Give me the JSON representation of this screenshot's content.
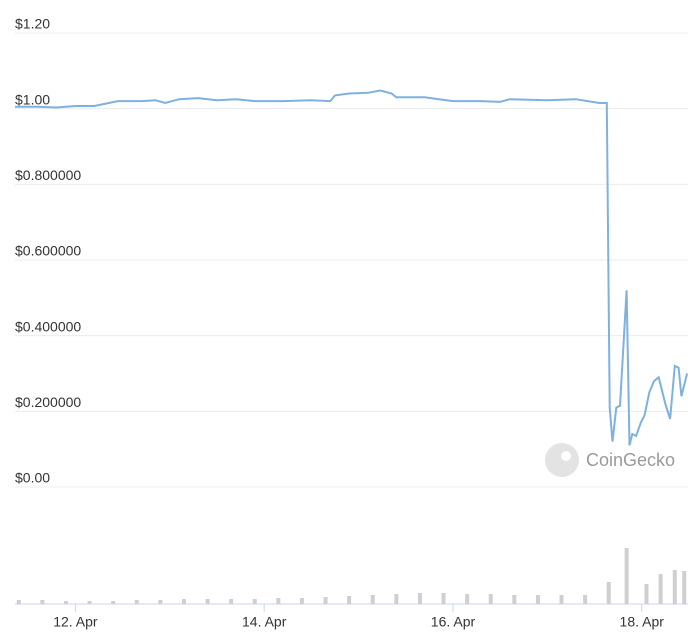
{
  "chart_data": [
    {
      "type": "line",
      "watermark": "CoinGecko",
      "series": [
        {
          "color": "#7fb1df",
          "x": [
            11.36,
            11.6,
            11.8,
            12.0,
            12.2,
            12.45,
            12.7,
            12.85,
            12.95,
            13.1,
            13.3,
            13.5,
            13.7,
            13.9,
            14.2,
            14.5,
            14.7,
            14.75,
            14.9,
            15.1,
            15.23,
            15.35,
            15.4,
            15.7,
            15.85,
            16.0,
            16.3,
            16.5,
            16.6,
            17.0,
            17.3,
            17.55,
            17.63,
            17.66,
            17.69,
            17.73,
            17.77,
            17.84,
            17.87,
            17.9,
            17.94,
            17.99,
            18.03,
            18.08,
            18.13,
            18.18,
            18.25,
            18.3,
            18.35,
            18.39,
            18.42,
            18.48
          ],
          "values": [
            1.005,
            1.005,
            1.003,
            1.007,
            1.007,
            1.02,
            1.02,
            1.022,
            1.015,
            1.025,
            1.028,
            1.022,
            1.025,
            1.02,
            1.02,
            1.022,
            1.02,
            1.035,
            1.04,
            1.042,
            1.048,
            1.04,
            1.03,
            1.03,
            1.025,
            1.02,
            1.02,
            1.018,
            1.025,
            1.022,
            1.025,
            1.015,
            1.015,
            0.21,
            0.12,
            0.21,
            0.215,
            0.52,
            0.11,
            0.14,
            0.135,
            0.17,
            0.19,
            0.25,
            0.28,
            0.29,
            0.22,
            0.18,
            0.32,
            0.315,
            0.24,
            0.3
          ]
        }
      ],
      "xlim": [
        11.36,
        18.49
      ],
      "xticks": [
        {
          "value": 12,
          "label": "12. Apr"
        },
        {
          "value": 14,
          "label": "14. Apr"
        },
        {
          "value": 16,
          "label": "16. Apr"
        },
        {
          "value": 18,
          "label": "18. Apr"
        }
      ],
      "ylim": [
        0,
        1.2
      ],
      "yticks": [
        {
          "value": 0,
          "label": "$0.00"
        },
        {
          "value": 0.2,
          "label": "$0.200000"
        },
        {
          "value": 0.4,
          "label": "$0.400000"
        },
        {
          "value": 0.6,
          "label": "$0.600000"
        },
        {
          "value": 0.8,
          "label": "$0.800000"
        },
        {
          "value": 1,
          "label": "$1.00"
        },
        {
          "value": 1.2,
          "label": "$1.20"
        }
      ],
      "grid": true
    },
    {
      "type": "bar",
      "color": "#cfcfcf",
      "x": [
        11.4,
        11.65,
        11.9,
        12.15,
        12.4,
        12.65,
        12.9,
        13.15,
        13.4,
        13.65,
        13.9,
        14.15,
        14.4,
        14.65,
        14.9,
        15.15,
        15.4,
        15.65,
        15.9,
        16.15,
        16.4,
        16.65,
        16.9,
        17.15,
        17.4,
        17.65,
        17.84,
        18.05,
        18.2,
        18.35,
        18.45
      ],
      "values": [
        4,
        4,
        3,
        3,
        3,
        4,
        4,
        5,
        5,
        5,
        5,
        6,
        6,
        7,
        8,
        9,
        10,
        11,
        11,
        10,
        10,
        9,
        9,
        9,
        9,
        22,
        56,
        20,
        30,
        34,
        33
      ]
    }
  ]
}
